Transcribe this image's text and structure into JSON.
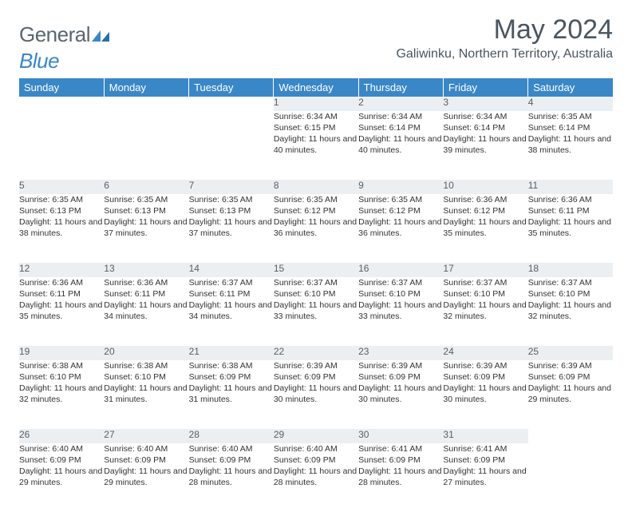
{
  "logo": {
    "t1": "General",
    "t2": "Blue"
  },
  "title": "May 2024",
  "location": "Galiwinku, Northern Territory, Australia",
  "colors": {
    "header_bg": "#3a87c8",
    "daynum_bg": "#eceff1",
    "text": "#333333",
    "title": "#4a5560"
  },
  "day_headers": [
    "Sunday",
    "Monday",
    "Tuesday",
    "Wednesday",
    "Thursday",
    "Friday",
    "Saturday"
  ],
  "weeks": [
    {
      "nums": [
        "",
        "",
        "",
        "1",
        "2",
        "3",
        "4"
      ],
      "info": [
        "",
        "",
        "",
        "Sunrise: 6:34 AM\nSunset: 6:15 PM\nDaylight: 11 hours and 40 minutes.",
        "Sunrise: 6:34 AM\nSunset: 6:14 PM\nDaylight: 11 hours and 40 minutes.",
        "Sunrise: 6:34 AM\nSunset: 6:14 PM\nDaylight: 11 hours and 39 minutes.",
        "Sunrise: 6:35 AM\nSunset: 6:14 PM\nDaylight: 11 hours and 38 minutes."
      ]
    },
    {
      "nums": [
        "5",
        "6",
        "7",
        "8",
        "9",
        "10",
        "11"
      ],
      "info": [
        "Sunrise: 6:35 AM\nSunset: 6:13 PM\nDaylight: 11 hours and 38 minutes.",
        "Sunrise: 6:35 AM\nSunset: 6:13 PM\nDaylight: 11 hours and 37 minutes.",
        "Sunrise: 6:35 AM\nSunset: 6:13 PM\nDaylight: 11 hours and 37 minutes.",
        "Sunrise: 6:35 AM\nSunset: 6:12 PM\nDaylight: 11 hours and 36 minutes.",
        "Sunrise: 6:35 AM\nSunset: 6:12 PM\nDaylight: 11 hours and 36 minutes.",
        "Sunrise: 6:36 AM\nSunset: 6:12 PM\nDaylight: 11 hours and 35 minutes.",
        "Sunrise: 6:36 AM\nSunset: 6:11 PM\nDaylight: 11 hours and 35 minutes."
      ]
    },
    {
      "nums": [
        "12",
        "13",
        "14",
        "15",
        "16",
        "17",
        "18"
      ],
      "info": [
        "Sunrise: 6:36 AM\nSunset: 6:11 PM\nDaylight: 11 hours and 35 minutes.",
        "Sunrise: 6:36 AM\nSunset: 6:11 PM\nDaylight: 11 hours and 34 minutes.",
        "Sunrise: 6:37 AM\nSunset: 6:11 PM\nDaylight: 11 hours and 34 minutes.",
        "Sunrise: 6:37 AM\nSunset: 6:10 PM\nDaylight: 11 hours and 33 minutes.",
        "Sunrise: 6:37 AM\nSunset: 6:10 PM\nDaylight: 11 hours and 33 minutes.",
        "Sunrise: 6:37 AM\nSunset: 6:10 PM\nDaylight: 11 hours and 32 minutes.",
        "Sunrise: 6:37 AM\nSunset: 6:10 PM\nDaylight: 11 hours and 32 minutes."
      ]
    },
    {
      "nums": [
        "19",
        "20",
        "21",
        "22",
        "23",
        "24",
        "25"
      ],
      "info": [
        "Sunrise: 6:38 AM\nSunset: 6:10 PM\nDaylight: 11 hours and 32 minutes.",
        "Sunrise: 6:38 AM\nSunset: 6:10 PM\nDaylight: 11 hours and 31 minutes.",
        "Sunrise: 6:38 AM\nSunset: 6:09 PM\nDaylight: 11 hours and 31 minutes.",
        "Sunrise: 6:39 AM\nSunset: 6:09 PM\nDaylight: 11 hours and 30 minutes.",
        "Sunrise: 6:39 AM\nSunset: 6:09 PM\nDaylight: 11 hours and 30 minutes.",
        "Sunrise: 6:39 AM\nSunset: 6:09 PM\nDaylight: 11 hours and 30 minutes.",
        "Sunrise: 6:39 AM\nSunset: 6:09 PM\nDaylight: 11 hours and 29 minutes."
      ]
    },
    {
      "nums": [
        "26",
        "27",
        "28",
        "29",
        "30",
        "31",
        ""
      ],
      "info": [
        "Sunrise: 6:40 AM\nSunset: 6:09 PM\nDaylight: 11 hours and 29 minutes.",
        "Sunrise: 6:40 AM\nSunset: 6:09 PM\nDaylight: 11 hours and 29 minutes.",
        "Sunrise: 6:40 AM\nSunset: 6:09 PM\nDaylight: 11 hours and 28 minutes.",
        "Sunrise: 6:40 AM\nSunset: 6:09 PM\nDaylight: 11 hours and 28 minutes.",
        "Sunrise: 6:41 AM\nSunset: 6:09 PM\nDaylight: 11 hours and 28 minutes.",
        "Sunrise: 6:41 AM\nSunset: 6:09 PM\nDaylight: 11 hours and 27 minutes.",
        ""
      ]
    }
  ]
}
